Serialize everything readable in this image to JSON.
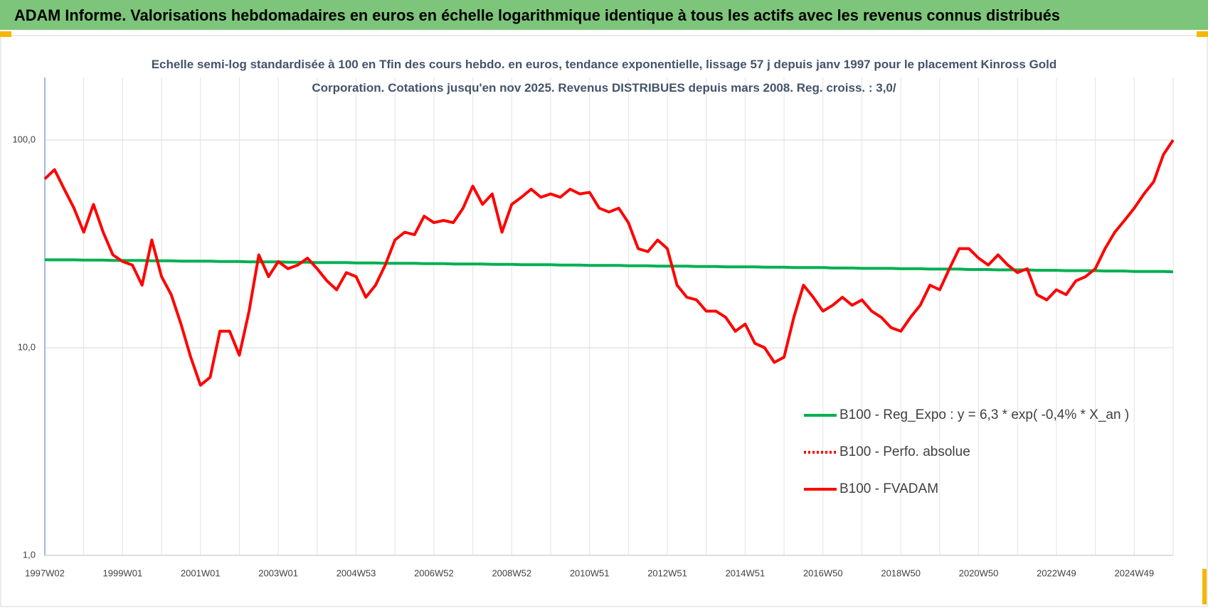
{
  "header": {
    "title": "ADAM Informe. Valorisations hebdomadaires en euros en échelle logarithmique identique à tous les actifs avec les revenus connus distribués"
  },
  "chart_data": {
    "type": "line",
    "subtitle": "Echelle semi-log standardisée à 100 en Tfin des cours hebdo. en euros, tendance exponentielle, lissage 57 j depuis janv 1997 pour le placement Kinross Gold Corporation. Cotations jusqu'en nov 2025.  Revenus DISTRIBUES depuis mars 2008. Reg. croiss. : 3,0/",
    "log_scale": true,
    "grid": true,
    "legend": "right",
    "ylim": [
      1,
      200
    ],
    "yticks": [
      {
        "value": 1,
        "label": "1,0"
      },
      {
        "value": 10,
        "label": "10,0"
      },
      {
        "value": 100,
        "label": "100,0"
      }
    ],
    "categories": [
      "1997W02",
      null,
      null,
      null,
      null,
      null,
      null,
      null,
      "1999W01",
      null,
      null,
      null,
      null,
      null,
      null,
      null,
      "2001W01",
      null,
      null,
      null,
      null,
      null,
      null,
      null,
      "2003W01",
      null,
      null,
      null,
      null,
      null,
      null,
      null,
      "2004W53",
      null,
      null,
      null,
      null,
      null,
      null,
      null,
      "2006W52",
      null,
      null,
      null,
      null,
      null,
      null,
      null,
      "2008W52",
      null,
      null,
      null,
      null,
      null,
      null,
      null,
      "2010W51",
      null,
      null,
      null,
      null,
      null,
      null,
      null,
      "2012W51",
      null,
      null,
      null,
      null,
      null,
      null,
      null,
      "2014W51",
      null,
      null,
      null,
      null,
      null,
      null,
      null,
      "2016W50",
      null,
      null,
      null,
      null,
      null,
      null,
      null,
      "2018W50",
      null,
      null,
      null,
      null,
      null,
      null,
      null,
      "2020W50",
      null,
      null,
      null,
      null,
      null,
      null,
      null,
      "2022W49",
      null,
      null,
      null,
      null,
      null,
      null,
      null,
      "2024W49",
      null,
      null,
      null,
      null
    ],
    "series": [
      {
        "name": "B100 - Reg_Expo : y = 6,3 * exp( -0,4% * X_an )",
        "color": "#00b050",
        "dash": "solid",
        "values": [
          26.5,
          26.5,
          26.5,
          26.5,
          26.4,
          26.4,
          26.4,
          26.3,
          26.3,
          26.3,
          26.3,
          26.2,
          26.2,
          26.2,
          26.1,
          26.1,
          26.1,
          26.1,
          26.0,
          26.0,
          26.0,
          25.9,
          25.9,
          25.9,
          25.9,
          25.8,
          25.8,
          25.8,
          25.7,
          25.7,
          25.7,
          25.7,
          25.6,
          25.6,
          25.6,
          25.5,
          25.5,
          25.5,
          25.5,
          25.4,
          25.4,
          25.4,
          25.3,
          25.3,
          25.3,
          25.3,
          25.2,
          25.2,
          25.2,
          25.1,
          25.1,
          25.1,
          25.1,
          25.0,
          25.0,
          25.0,
          24.9,
          24.9,
          24.9,
          24.9,
          24.8,
          24.8,
          24.8,
          24.7,
          24.7,
          24.7,
          24.7,
          24.6,
          24.6,
          24.6,
          24.5,
          24.5,
          24.5,
          24.5,
          24.4,
          24.4,
          24.4,
          24.3,
          24.3,
          24.3,
          24.3,
          24.2,
          24.2,
          24.2,
          24.1,
          24.1,
          24.1,
          24.1,
          24.0,
          24.0,
          24.0,
          23.9,
          23.9,
          23.9,
          23.9,
          23.8,
          23.8,
          23.8,
          23.7,
          23.7,
          23.7,
          23.7,
          23.6,
          23.6,
          23.6,
          23.5,
          23.5,
          23.5,
          23.5,
          23.4,
          23.4,
          23.4,
          23.3,
          23.3,
          23.3,
          23.3,
          23.2
        ]
      },
      {
        "name": "B100 - Perfo. absolue",
        "color": "#ff0000",
        "dash": "dotted",
        "values": [
          null,
          null,
          null,
          null,
          null,
          null,
          null,
          null,
          null,
          null,
          null,
          null,
          null,
          null,
          null,
          null,
          null,
          null,
          null,
          null,
          null,
          null,
          null,
          null,
          null,
          null,
          null,
          null,
          null,
          null,
          null,
          null,
          null,
          null,
          null,
          null,
          null,
          null,
          null,
          null,
          null,
          null,
          null,
          null,
          null,
          null,
          null,
          null,
          null,
          null,
          null,
          null,
          null,
          null,
          null,
          null,
          null,
          null,
          null,
          null,
          null,
          null,
          null,
          null,
          null,
          null,
          null,
          null,
          null,
          null,
          null,
          null,
          null,
          null,
          null,
          null,
          null,
          null,
          null,
          null,
          null,
          null,
          null,
          null,
          null,
          null,
          null,
          null,
          null,
          null,
          null,
          null,
          null,
          null,
          null,
          null,
          null,
          null,
          null,
          null,
          null,
          null,
          null,
          null,
          null,
          null,
          null,
          null,
          null,
          null,
          null,
          null,
          null,
          null,
          null,
          null,
          null
        ]
      },
      {
        "name": "B100 - FVADAM",
        "color": "#ff0000",
        "dash": "solid",
        "values": [
          65,
          72,
          58,
          47,
          36,
          49,
          36,
          28,
          26,
          25,
          20,
          33,
          22,
          18,
          13,
          9,
          6.6,
          7.2,
          12,
          12,
          9.2,
          15,
          28,
          22,
          26,
          24,
          25,
          27,
          24,
          21,
          19,
          23,
          22,
          17.5,
          20,
          25,
          33,
          36,
          35,
          43,
          40,
          41,
          40,
          47,
          60,
          49,
          55,
          36,
          49,
          53,
          58,
          53,
          55,
          53,
          58,
          55,
          56,
          47,
          45,
          47,
          40,
          30,
          29,
          33,
          30,
          20,
          17.5,
          17,
          15,
          15,
          14,
          12,
          13,
          10.5,
          10,
          8.5,
          9,
          14,
          20,
          17.5,
          15,
          16,
          17.5,
          16,
          17,
          15,
          14,
          12.5,
          12,
          14,
          16,
          20,
          19,
          24,
          30,
          30,
          27,
          25,
          28,
          25,
          23,
          24,
          18,
          17,
          19,
          18,
          21,
          22,
          24,
          30,
          36,
          41,
          47,
          55,
          63,
          85,
          100
        ]
      }
    ]
  }
}
